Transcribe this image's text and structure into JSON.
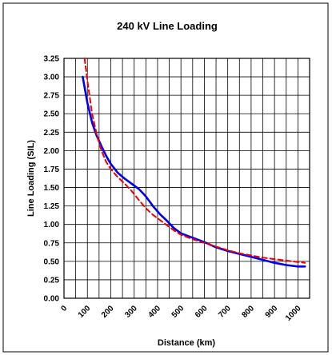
{
  "chart_data": {
    "type": "line",
    "title": "240 kV Line Loading",
    "xlabel": "Distance (km)",
    "ylabel": "Line Loading (SIL)",
    "xlim": [
      0,
      1050
    ],
    "ylim": [
      0,
      3.25
    ],
    "x_ticks": [
      "0",
      "100",
      "200",
      "300",
      "400",
      "500",
      "600",
      "700",
      "800",
      "900",
      "1000"
    ],
    "y_ticks": [
      "0.00",
      "0.25",
      "0.50",
      "0.75",
      "1.00",
      "1.25",
      "1.50",
      "1.75",
      "2.00",
      "2.25",
      "2.50",
      "2.75",
      "3.00",
      "3.25"
    ],
    "grid": true,
    "colors": {
      "solid": "#0000ee",
      "dashed": "#ee0000"
    },
    "series": [
      {
        "style": "solid",
        "x": [
          80,
          100,
          120,
          140,
          160,
          180,
          200,
          230,
          260,
          290,
          320,
          350,
          380,
          410,
          440,
          470,
          500,
          550,
          600,
          650,
          700,
          750,
          800,
          850,
          900,
          950,
          1000,
          1030
        ],
        "y": [
          3.0,
          2.65,
          2.38,
          2.2,
          2.06,
          1.93,
          1.82,
          1.7,
          1.62,
          1.55,
          1.48,
          1.38,
          1.25,
          1.14,
          1.05,
          0.95,
          0.88,
          0.82,
          0.76,
          0.69,
          0.64,
          0.6,
          0.56,
          0.52,
          0.48,
          0.45,
          0.43,
          0.43
        ]
      },
      {
        "style": "dashed",
        "x": [
          88,
          100,
          120,
          140,
          160,
          180,
          200,
          230,
          260,
          290,
          320,
          350,
          380,
          410,
          440,
          470,
          500,
          550,
          600,
          650,
          700,
          750,
          800,
          850,
          900,
          950,
          1000,
          1030
        ],
        "y": [
          3.25,
          2.95,
          2.5,
          2.22,
          2.0,
          1.85,
          1.75,
          1.64,
          1.55,
          1.45,
          1.33,
          1.22,
          1.13,
          1.06,
          0.99,
          0.92,
          0.86,
          0.8,
          0.75,
          0.7,
          0.65,
          0.61,
          0.58,
          0.55,
          0.53,
          0.51,
          0.49,
          0.48
        ]
      }
    ]
  }
}
